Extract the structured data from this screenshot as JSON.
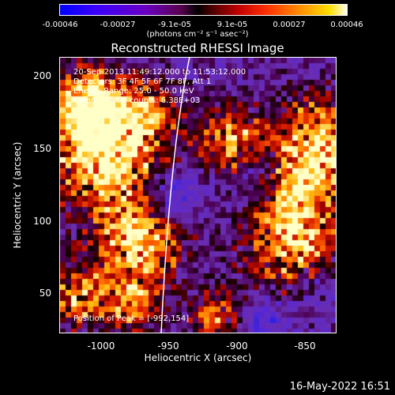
{
  "colorbar": {
    "ticks": [
      "-0.00046",
      "-0.00027",
      "-9.1e-05",
      "9.1e-05",
      "0.00027",
      "0.00046"
    ],
    "unit_label": "(photons cm⁻² s⁻¹ asec⁻²)"
  },
  "title": "Reconstructed RHESSI Image",
  "annotations": {
    "time": "20-Sep-2013 11:49:12.000 to 11:53:12.000",
    "detectors": "Detectors: 3F 4F 5F 6F 7F 8F, Att 1",
    "energy": "Energy Range: 25.0 - 50.0 keV",
    "clean": "Clean     Total counts: 6.38E+03",
    "peak": "Position of Peak = [-992,154]"
  },
  "axes": {
    "xlabel": "Heliocentric X (arcsec)",
    "ylabel": "Heliocentric Y (arcsec)",
    "xticks": [
      "-1000",
      "-950",
      "-900",
      "-850"
    ],
    "yticks": [
      "200",
      "150",
      "100",
      "50"
    ]
  },
  "timestamp": "16-May-2022 16:51"
}
